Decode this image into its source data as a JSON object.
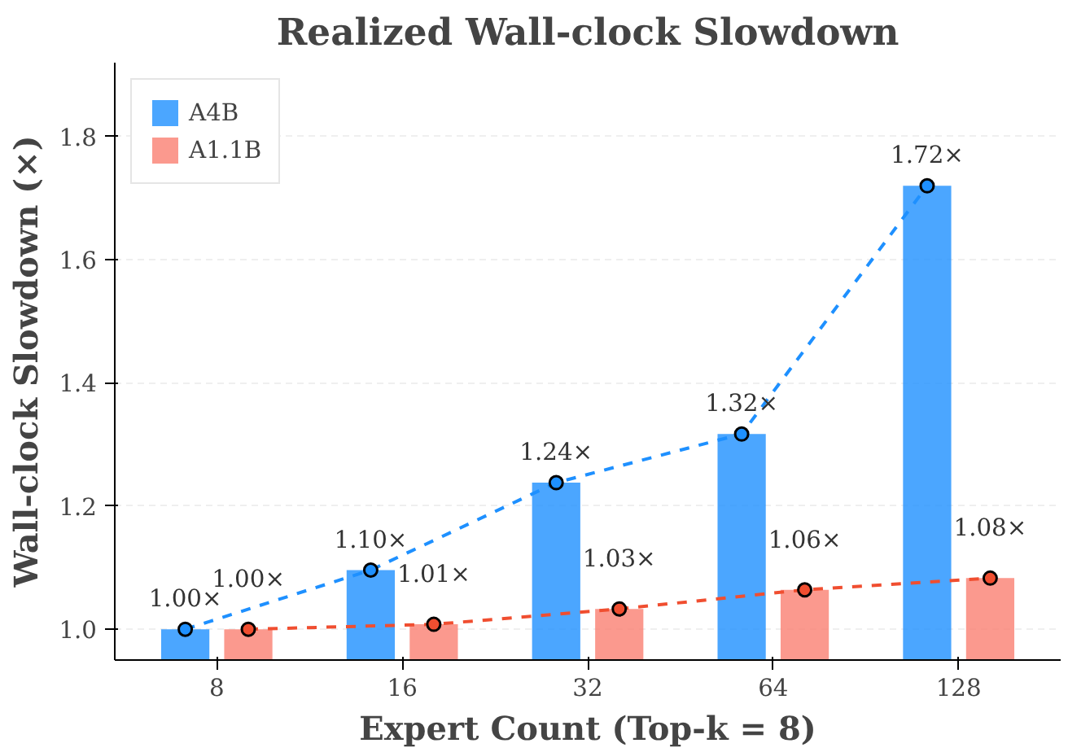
{
  "chart_data": {
    "type": "bar",
    "title": "Realized Wall-clock Slowdown",
    "xlabel": "Expert Count (Top-k = 8)",
    "ylabel": "Wall-clock Slowdown (×)",
    "categories": [
      "8",
      "16",
      "32",
      "64",
      "128"
    ],
    "ylim": [
      0.95,
      1.92
    ],
    "yticks": [
      {
        "value": 1.0,
        "label": "1.0"
      },
      1.2,
      1.4,
      1.6,
      1.8
    ],
    "grid": "y",
    "legend": "top left",
    "series": [
      {
        "name": "A4B",
        "color": "#1e90ff",
        "values": [
          1.0,
          1.096,
          1.238,
          1.317,
          1.72
        ],
        "value_labels": [
          "1.00×",
          "1.10×",
          "1.24×",
          "1.32×",
          "1.72×"
        ]
      },
      {
        "name": "A1.1B",
        "color": "#fa8072",
        "values": [
          1.0,
          1.008,
          1.033,
          1.064,
          1.083
        ],
        "value_labels": [
          "1.00×",
          "1.01×",
          "1.03×",
          "1.06×",
          "1.08×"
        ]
      },
      {
        "type": "line",
        "color": "#1e90ff",
        "line_style": "dashed",
        "marker": "circle",
        "values": [
          1.0,
          1.096,
          1.238,
          1.317,
          1.72
        ]
      },
      {
        "type": "line",
        "color": "#f04e30",
        "line_style": "dashed",
        "marker": "circle",
        "values": [
          1.0,
          1.008,
          1.033,
          1.064,
          1.083
        ]
      }
    ]
  }
}
